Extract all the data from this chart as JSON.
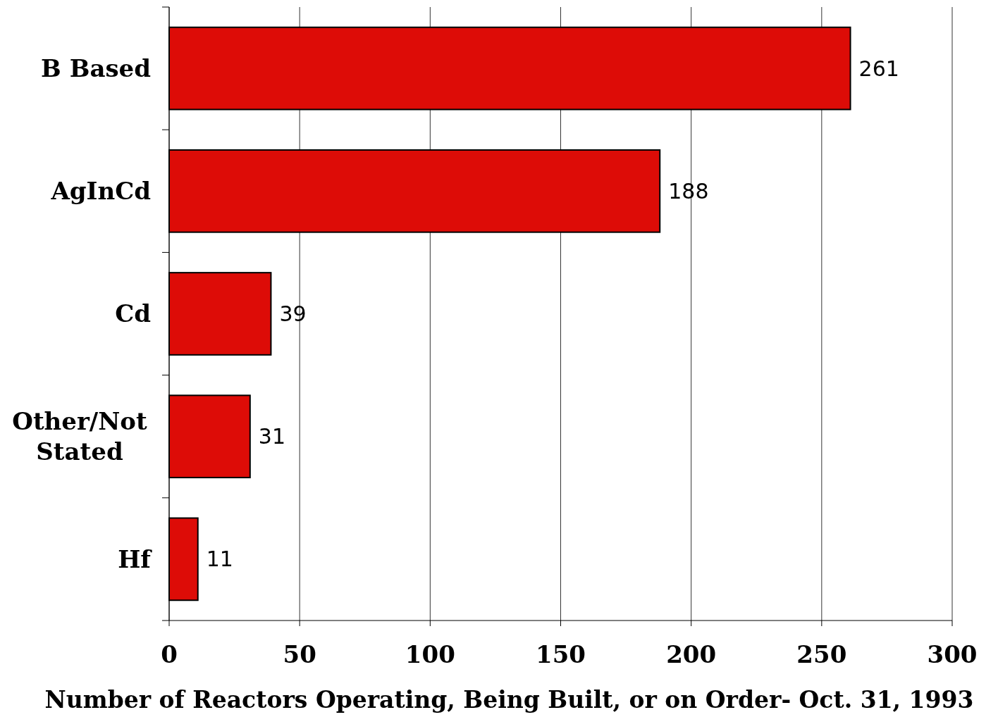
{
  "chart_data": {
    "type": "bar",
    "orientation": "horizontal",
    "categories": [
      "B Based",
      "AgInCd",
      "Cd",
      "Other/Not Stated",
      "Hf"
    ],
    "values": [
      261,
      188,
      39,
      31,
      11
    ],
    "color": "#dd0c07",
    "xlim": [
      0,
      300
    ],
    "xticks": [
      0,
      50,
      100,
      150,
      200,
      250,
      300
    ],
    "xlabel": "Number of Reactors Operating, Being Built, or on Order- Oct. 31, 1993",
    "grid": "x",
    "data_labels": true
  }
}
